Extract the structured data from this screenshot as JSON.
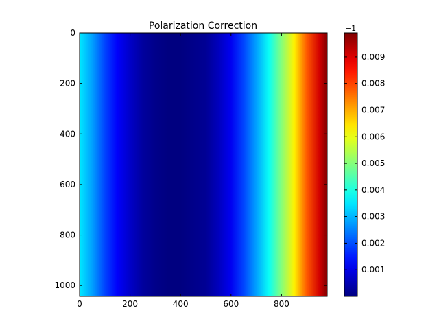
{
  "chart_data": {
    "type": "heatmap",
    "title": "Polarization Correction",
    "xlabel": "",
    "ylabel": "",
    "x_range": [
      0,
      981
    ],
    "y_range": [
      0,
      1043
    ],
    "y_axis_inverted": true,
    "x_ticks": [
      "0",
      "200",
      "400",
      "600",
      "800"
    ],
    "x_tick_values": [
      0,
      200,
      400,
      600,
      800
    ],
    "y_ticks": [
      "0",
      "200",
      "400",
      "600",
      "800",
      "1000"
    ],
    "y_tick_values": [
      0,
      200,
      400,
      600,
      800,
      1000
    ],
    "colormap": "jet",
    "grid": false,
    "value_offset": "+1",
    "color_range": [
      0.0,
      0.0099
    ],
    "colorbar_ticks": [
      "0.001",
      "0.002",
      "0.003",
      "0.004",
      "0.005",
      "0.006",
      "0.007",
      "0.008",
      "0.009"
    ],
    "colorbar_tick_values": [
      0.001,
      0.002,
      0.003,
      0.004,
      0.005,
      0.006,
      0.007,
      0.008,
      0.009
    ],
    "column_profile": {
      "x": [
        0,
        50,
        100,
        150,
        200,
        250,
        300,
        350,
        400,
        450,
        500,
        550,
        600,
        650,
        700,
        750,
        800,
        850,
        900,
        950,
        981
      ],
      "values": [
        0.0035,
        0.0028,
        0.0019,
        0.0012,
        0.0007,
        0.0003,
        0.0001,
        0.0,
        0.0,
        0.0001,
        0.0002,
        0.0006,
        0.0011,
        0.0019,
        0.0028,
        0.0038,
        0.005,
        0.0063,
        0.0078,
        0.0091,
        0.0099
      ]
    }
  }
}
